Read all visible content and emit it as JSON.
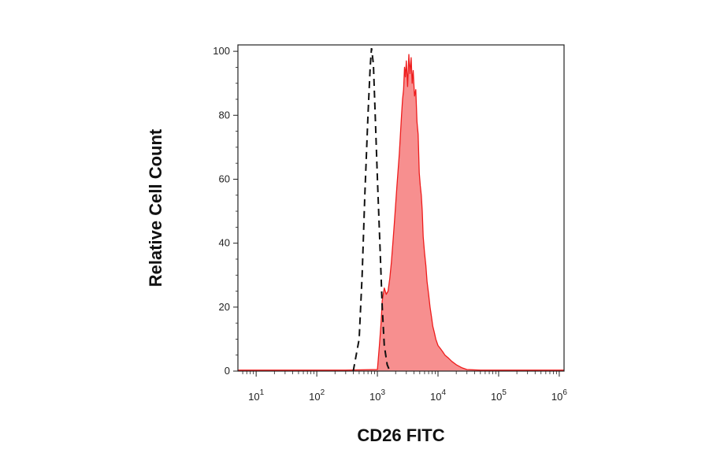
{
  "chart_data": {
    "type": "area",
    "xlabel": "CD26 FITC",
    "ylabel": "Relative Cell Count",
    "x_scale": "log10",
    "xlim": [
      5,
      1200000
    ],
    "ylim": [
      0,
      102
    ],
    "x_ticks": [
      {
        "value": 10,
        "base": "10",
        "exp": "1"
      },
      {
        "value": 100,
        "base": "10",
        "exp": "2"
      },
      {
        "value": 1000,
        "base": "10",
        "exp": "3"
      },
      {
        "value": 10000,
        "base": "10",
        "exp": "4"
      },
      {
        "value": 100000,
        "base": "10",
        "exp": "5"
      },
      {
        "value": 1000000,
        "base": "10",
        "exp": "6"
      }
    ],
    "y_ticks": [
      0,
      20,
      40,
      60,
      80,
      100
    ],
    "grid": false,
    "legend": "none",
    "series": [
      {
        "style": "filled",
        "color": "#ee1c1c",
        "fill": "#f78f8f",
        "points": [
          [
            5,
            0.3
          ],
          [
            50,
            0.3
          ],
          [
            300,
            0.3
          ],
          [
            1000,
            0.5
          ],
          [
            1080,
            8
          ],
          [
            1150,
            15
          ],
          [
            1200,
            22
          ],
          [
            1300,
            26
          ],
          [
            1400,
            24
          ],
          [
            1500,
            25
          ],
          [
            1600,
            29
          ],
          [
            1700,
            34
          ],
          [
            1800,
            40
          ],
          [
            1900,
            46
          ],
          [
            2000,
            52
          ],
          [
            2100,
            58
          ],
          [
            2200,
            63
          ],
          [
            2300,
            68
          ],
          [
            2400,
            74
          ],
          [
            2500,
            80
          ],
          [
            2600,
            85
          ],
          [
            2700,
            88
          ],
          [
            2800,
            95
          ],
          [
            2900,
            92
          ],
          [
            3000,
            97
          ],
          [
            3150,
            89
          ],
          [
            3300,
            99
          ],
          [
            3450,
            93
          ],
          [
            3600,
            98
          ],
          [
            3750,
            90
          ],
          [
            3900,
            94
          ],
          [
            4100,
            86
          ],
          [
            4300,
            88
          ],
          [
            4500,
            78
          ],
          [
            4700,
            74
          ],
          [
            4900,
            62
          ],
          [
            5100,
            58
          ],
          [
            5300,
            55
          ],
          [
            5500,
            50
          ],
          [
            5700,
            42
          ],
          [
            6000,
            37
          ],
          [
            6300,
            33
          ],
          [
            6600,
            28
          ],
          [
            7000,
            24
          ],
          [
            7400,
            20
          ],
          [
            7800,
            17
          ],
          [
            8200,
            14
          ],
          [
            8700,
            12
          ],
          [
            9200,
            10
          ],
          [
            10000,
            8
          ],
          [
            11000,
            7
          ],
          [
            12000,
            6
          ],
          [
            13000,
            5
          ],
          [
            15000,
            4
          ],
          [
            17000,
            3
          ],
          [
            20000,
            2
          ],
          [
            25000,
            1
          ],
          [
            30000,
            0.5
          ],
          [
            50000,
            0.3
          ],
          [
            1200000,
            0.3
          ]
        ]
      },
      {
        "style": "dashed",
        "color": "#111111",
        "points": [
          [
            400,
            0
          ],
          [
            500,
            10
          ],
          [
            560,
            30
          ],
          [
            620,
            55
          ],
          [
            700,
            80
          ],
          [
            760,
            95
          ],
          [
            800,
            101
          ],
          [
            860,
            96
          ],
          [
            920,
            80
          ],
          [
            1000,
            60
          ],
          [
            1100,
            40
          ],
          [
            1200,
            20
          ],
          [
            1300,
            8
          ],
          [
            1450,
            2
          ],
          [
            1600,
            0
          ]
        ]
      }
    ]
  }
}
